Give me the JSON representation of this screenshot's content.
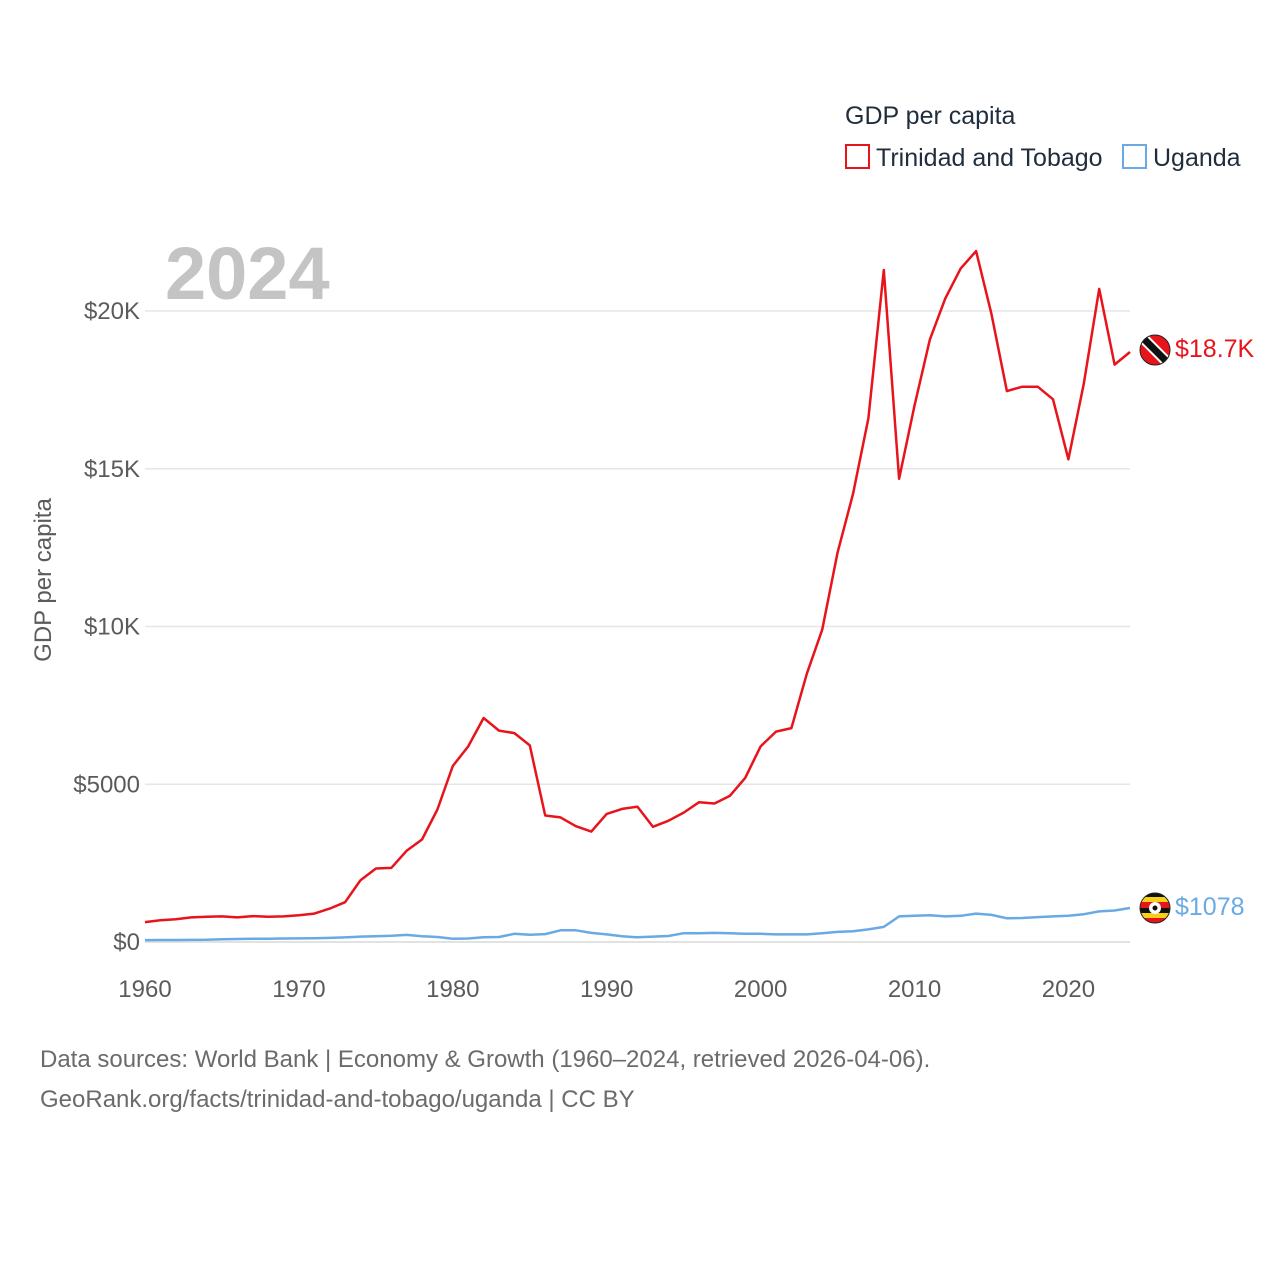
{
  "chart_data": {
    "type": "line",
    "title": "GDP per capita",
    "year_label": "2024",
    "ylabel": "GDP per capita",
    "xlabel": "",
    "xlim": [
      1960,
      2024
    ],
    "ylim": [
      0,
      20000
    ],
    "x_ticks": [
      1960,
      1970,
      1980,
      1990,
      2000,
      2010,
      2020
    ],
    "y_ticks": [
      {
        "value": 0,
        "label": "$0"
      },
      {
        "value": 5000,
        "label": "$5000"
      },
      {
        "value": 10000,
        "label": "$10K"
      },
      {
        "value": 15000,
        "label": "$15K"
      },
      {
        "value": 20000,
        "label": "$20K"
      }
    ],
    "grid": true,
    "legend_position": "top-right",
    "series": [
      {
        "name": "Trinidad and Tobago",
        "color": "#e8141b",
        "end_label": "$18.7K",
        "x": [
          1960,
          1961,
          1962,
          1963,
          1964,
          1965,
          1966,
          1967,
          1968,
          1969,
          1970,
          1971,
          1972,
          1973,
          1974,
          1975,
          1976,
          1977,
          1978,
          1979,
          1980,
          1981,
          1982,
          1983,
          1984,
          1985,
          1986,
          1987,
          1988,
          1989,
          1990,
          1991,
          1992,
          1993,
          1994,
          1995,
          1996,
          1997,
          1998,
          1999,
          2000,
          2001,
          2002,
          2003,
          2004,
          2005,
          2006,
          2007,
          2008,
          2009,
          2010,
          2011,
          2012,
          2013,
          2014,
          2015,
          2016,
          2017,
          2018,
          2019,
          2020,
          2021,
          2022,
          2023,
          2024
        ],
        "values": [
          630,
          690,
          720,
          780,
          800,
          810,
          780,
          820,
          800,
          810,
          850,
          900,
          1060,
          1260,
          1960,
          2330,
          2350,
          2890,
          3250,
          4200,
          5580,
          6200,
          7100,
          6700,
          6620,
          6230,
          4010,
          3950,
          3670,
          3500,
          4060,
          4220,
          4290,
          3650,
          3840,
          4100,
          4430,
          4390,
          4630,
          5200,
          6200,
          6670,
          6780,
          8500,
          9900,
          12350,
          14200,
          16600,
          21300,
          14680,
          17000,
          19100,
          20400,
          21350,
          21900,
          19900,
          17460,
          17600,
          17600,
          17200,
          15300,
          17700,
          20700,
          18300,
          18700
        ]
      },
      {
        "name": "Uganda",
        "color": "#6aaae4",
        "end_label": "$1078",
        "x": [
          1960,
          1961,
          1962,
          1963,
          1964,
          1965,
          1966,
          1967,
          1968,
          1969,
          1970,
          1971,
          1972,
          1973,
          1974,
          1975,
          1976,
          1977,
          1978,
          1979,
          1980,
          1981,
          1982,
          1983,
          1984,
          1985,
          1986,
          1987,
          1988,
          1989,
          1990,
          1991,
          1992,
          1993,
          1994,
          1995,
          1996,
          1997,
          1998,
          1999,
          2000,
          2001,
          2002,
          2003,
          2004,
          2005,
          2006,
          2007,
          2008,
          2009,
          2010,
          2011,
          2012,
          2013,
          2014,
          2015,
          2016,
          2017,
          2018,
          2019,
          2020,
          2021,
          2022,
          2023,
          2024
        ],
        "values": [
          60,
          62,
          64,
          66,
          70,
          90,
          95,
          100,
          105,
          110,
          115,
          120,
          130,
          145,
          170,
          185,
          195,
          225,
          185,
          160,
          100,
          110,
          150,
          160,
          260,
          230,
          250,
          370,
          370,
          290,
          240,
          180,
          150,
          170,
          190,
          280,
          280,
          290,
          280,
          260,
          260,
          240,
          240,
          240,
          280,
          320,
          340,
          400,
          480,
          810,
          830,
          850,
          810,
          830,
          900,
          860,
          750,
          760,
          790,
          810,
          830,
          880,
          970,
          1000,
          1078
        ]
      }
    ]
  },
  "footer": {
    "line1": "Data sources: World Bank | Economy & Growth (1960–2024, retrieved 2026-04-06).",
    "line2": "GeoRank.org/facts/trinidad-and-tobago/uganda | CC BY"
  }
}
